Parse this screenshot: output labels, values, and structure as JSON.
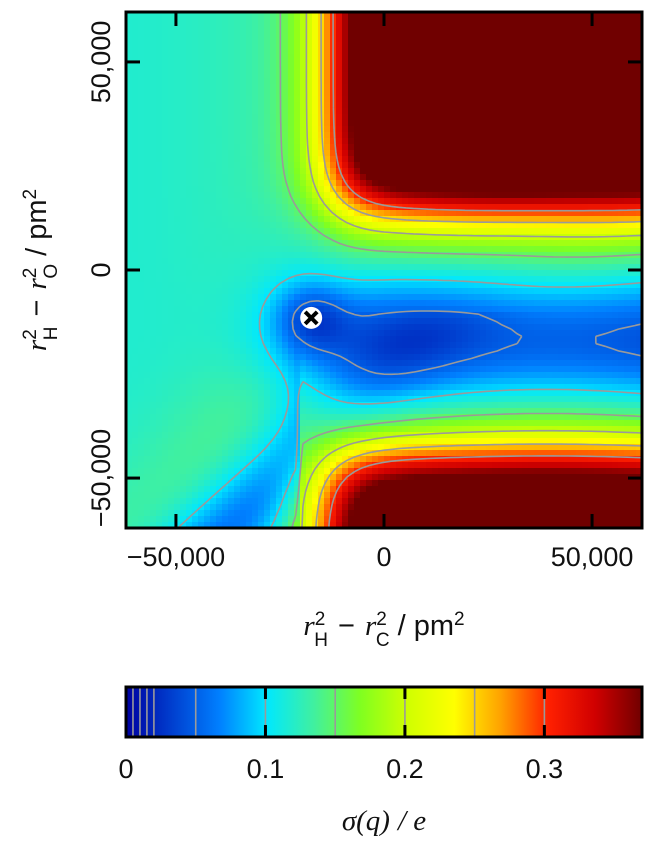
{
  "chart_data": {
    "type": "heatmap",
    "title": "",
    "xlabel": {
      "sym1": "r",
      "sup1": "2",
      "sub1": "H",
      "op": "−",
      "sym2": "r",
      "sup2": "2",
      "sub2": "C",
      "unit": "/ pm",
      "unit_sup": "2"
    },
    "ylabel": {
      "sym1": "r",
      "sup1": "2",
      "sub1": "H",
      "op": "−",
      "sym2": "r",
      "sup2": "2",
      "sub2": "O",
      "unit": "/ pm",
      "unit_sup": "2"
    },
    "xlim": [
      -62000,
      62000
    ],
    "ylim": [
      -62000,
      62000
    ],
    "xticks": [
      -50000,
      0,
      50000
    ],
    "yticks": [
      -50000,
      0,
      50000
    ],
    "xtick_labels": [
      "−50,000",
      "0",
      "50,000"
    ],
    "ytick_labels": [
      "−50,000",
      "0",
      "50,000"
    ],
    "marker": {
      "x": -17500,
      "y": -11500,
      "symbol": "x"
    },
    "contour_levels": [
      0.005,
      0.01,
      0.015,
      0.02,
      0.05,
      0.1,
      0.15,
      0.2,
      0.25,
      0.3
    ],
    "grid": false,
    "colorbar": {
      "label": {
        "sym": "σ",
        "arg": "(q)",
        "unit": "/ e"
      },
      "range": [
        0,
        0.37
      ],
      "ticks": [
        0,
        0.1,
        0.2,
        0.3
      ],
      "tick_labels": [
        "0",
        "0.1",
        "0.2",
        "0.3"
      ],
      "colors": [
        "#0000a0",
        "#0040d0",
        "#0080ff",
        "#00e8ff",
        "#40f0a0",
        "#80ff20",
        "#d0ff00",
        "#ffff00",
        "#ffa000",
        "#ff2000",
        "#d00000",
        "#700000"
      ]
    }
  }
}
